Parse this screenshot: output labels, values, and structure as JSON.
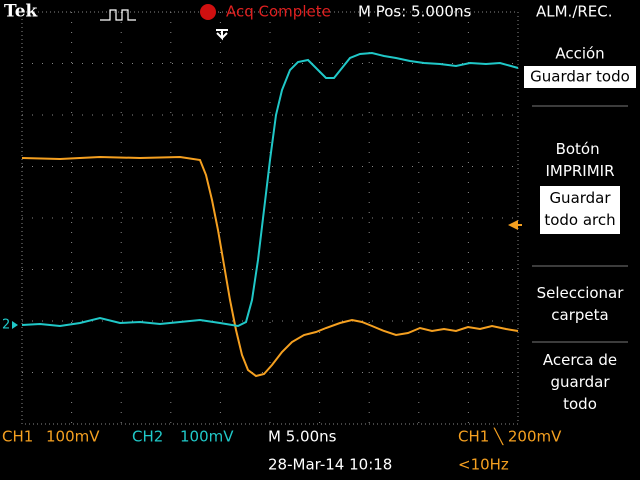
{
  "header": {
    "brand": "Tek",
    "status": "Acq Complete",
    "position": "M Pos: 5.000ns",
    "menu_title": "ALM./REC."
  },
  "menu": [
    {
      "label": "Acción",
      "selected": "Guardar todo"
    },
    {
      "label": "Botón IMPRIMIR",
      "selected": "Guardar todo arch"
    },
    {
      "label": "Seleccionar carpeta"
    },
    {
      "label": "Acerca de guardar todo"
    }
  ],
  "markers": {
    "ch2": "2"
  },
  "footer": {
    "ch1": "CH1",
    "ch1_scale": "100mV",
    "ch2": "CH2",
    "ch2_scale": "100mV",
    "timebase": "M 5.00ns",
    "trigger": "CH1 ╲ 200mV",
    "datetime": "28-Mar-14 10:18",
    "frequency": "<10Hz"
  }
}
